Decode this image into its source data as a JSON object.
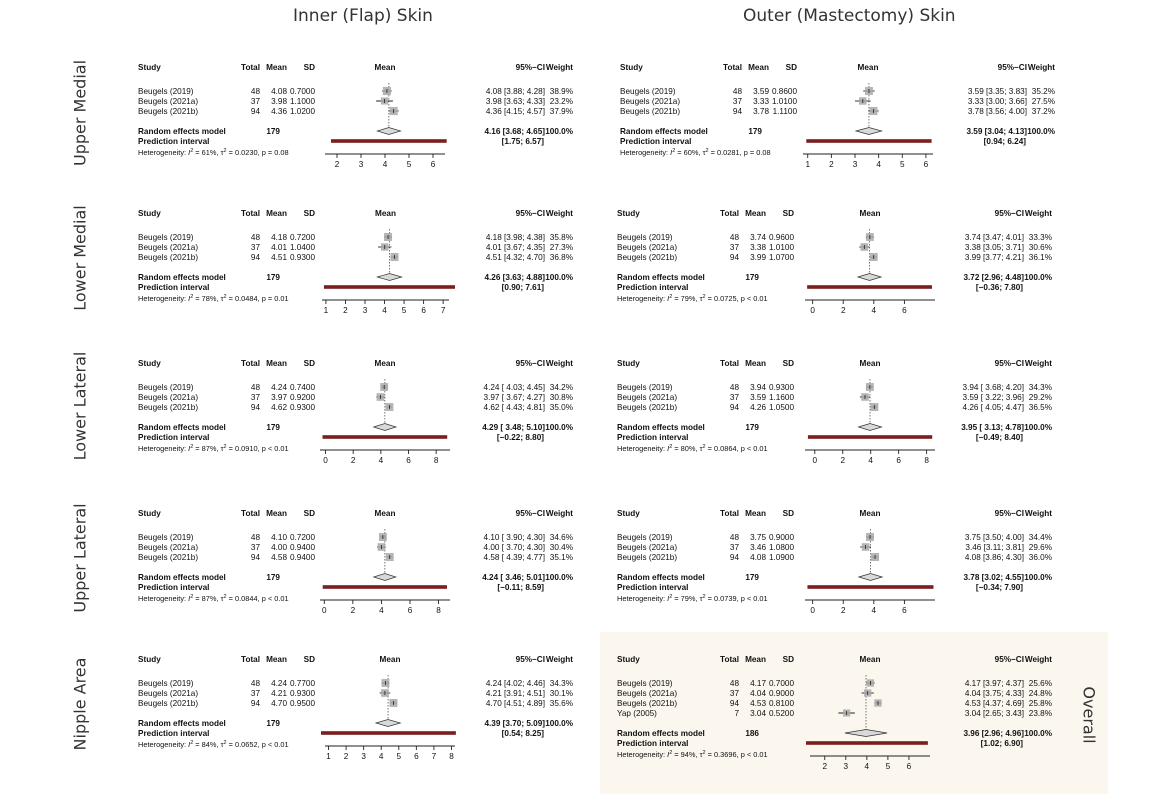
{
  "columns": [
    {
      "title": "Inner (Flap) Skin"
    },
    {
      "title": "Outer (Mastectomy) Skin"
    }
  ],
  "rows": [
    {
      "label": "Upper Medial"
    },
    {
      "label": "Lower Medial"
    },
    {
      "label": "Lower Lateral"
    },
    {
      "label": "Upper Lateral"
    },
    {
      "label": "Nipple Area"
    }
  ],
  "overall_label": "Overall",
  "headers": {
    "study": "Study",
    "total": "Total",
    "mean": "Mean",
    "sd": "SD",
    "plot": "Mean",
    "ci": "95%−CI",
    "weight": "Weight"
  },
  "labels": {
    "random": "Random effects model",
    "prediction": "Prediction interval"
  },
  "chart_data": [
    {
      "type": "forest",
      "panel": "inner-upper-medial",
      "xlim": [
        1.5,
        6.5
      ],
      "ticks": [
        "2",
        "3",
        "4",
        "5",
        "6"
      ],
      "studies": [
        {
          "name": "Beugels (2019)",
          "total": "48",
          "mean": "4.08",
          "sd": "0.7000",
          "est": 4.08,
          "lo": 3.88,
          "hi": 4.28,
          "ci": "4.08 [3.88; 4.28]",
          "weight": "38.9%",
          "w": 38.9
        },
        {
          "name": "Beugels (2021a)",
          "total": "37",
          "mean": "3.98",
          "sd": "1.1000",
          "est": 3.98,
          "lo": 3.63,
          "hi": 4.33,
          "ci": "3.98 [3.63; 4.33]",
          "weight": "23.2%",
          "w": 23.2
        },
        {
          "name": "Beugels (2021b)",
          "total": "94",
          "mean": "4.36",
          "sd": "1.0200",
          "est": 4.36,
          "lo": 4.15,
          "hi": 4.57,
          "ci": "4.36 [4.15; 4.57]",
          "weight": "37.9%",
          "w": 37.9
        }
      ],
      "random": {
        "total": "179",
        "est": 4.16,
        "lo": 3.68,
        "hi": 4.65,
        "ci": "4.16 [3.68; 4.65]",
        "weight": "100.0%"
      },
      "prediction": {
        "lo": 1.75,
        "hi": 6.57,
        "ci": "[1.75; 6.57]"
      },
      "heterogeneity": {
        "i2": "61%",
        "tau2": "0.0230",
        "p": "p = 0.08"
      }
    },
    {
      "type": "forest",
      "panel": "outer-upper-medial",
      "xlim": [
        0.8,
        6.3
      ],
      "ticks": [
        "1",
        "2",
        "3",
        "4",
        "5",
        "6"
      ],
      "studies": [
        {
          "name": "Beugels (2019)",
          "total": "48",
          "mean": "3.59",
          "sd": "0.8600",
          "est": 3.59,
          "lo": 3.35,
          "hi": 3.83,
          "ci": "3.59 [3.35; 3.83]",
          "weight": "35.2%",
          "w": 35.2
        },
        {
          "name": "Beugels (2021a)",
          "total": "37",
          "mean": "3.33",
          "sd": "1.0100",
          "est": 3.33,
          "lo": 3.0,
          "hi": 3.66,
          "ci": "3.33 [3.00; 3.66]",
          "weight": "27.5%",
          "w": 27.5
        },
        {
          "name": "Beugels (2021b)",
          "total": "94",
          "mean": "3.78",
          "sd": "1.1100",
          "est": 3.78,
          "lo": 3.56,
          "hi": 4.0,
          "ci": "3.78 [3.56; 4.00]",
          "weight": "37.2%",
          "w": 37.2
        }
      ],
      "random": {
        "total": "179",
        "est": 3.59,
        "lo": 3.04,
        "hi": 4.13,
        "ci": "3.59 [3.04; 4.13]",
        "weight": "100.0%"
      },
      "prediction": {
        "lo": 0.94,
        "hi": 6.24,
        "ci": "[0.94; 6.24]"
      },
      "heterogeneity": {
        "i2": "60%",
        "tau2": "0.0281",
        "p": "p = 0.08"
      }
    },
    {
      "type": "forest",
      "panel": "inner-lower-medial",
      "xlim": [
        0.8,
        7.3
      ],
      "ticks": [
        "1",
        "2",
        "3",
        "4",
        "5",
        "6",
        "7"
      ],
      "studies": [
        {
          "name": "Beugels (2019)",
          "total": "48",
          "mean": "4.18",
          "sd": "0.7200",
          "est": 4.18,
          "lo": 3.98,
          "hi": 4.38,
          "ci": "4.18 [3.98; 4.38]",
          "weight": "35.8%",
          "w": 35.8
        },
        {
          "name": "Beugels (2021a)",
          "total": "37",
          "mean": "4.01",
          "sd": "1.0400",
          "est": 4.01,
          "lo": 3.67,
          "hi": 4.35,
          "ci": "4.01 [3.67; 4.35]",
          "weight": "27.3%",
          "w": 27.3
        },
        {
          "name": "Beugels (2021b)",
          "total": "94",
          "mean": "4.51",
          "sd": "0.9300",
          "est": 4.51,
          "lo": 4.32,
          "hi": 4.7,
          "ci": "4.51 [4.32; 4.70]",
          "weight": "36.8%",
          "w": 36.8
        }
      ],
      "random": {
        "total": "179",
        "est": 4.26,
        "lo": 3.63,
        "hi": 4.88,
        "ci": "4.26 [3.63; 4.88]",
        "weight": "100.0%"
      },
      "prediction": {
        "lo": 0.9,
        "hi": 7.61,
        "ci": "[0.90; 7.61]"
      },
      "heterogeneity": {
        "i2": "78%",
        "tau2": "0.0484",
        "p": "p = 0.01"
      }
    },
    {
      "type": "forest",
      "panel": "outer-lower-medial",
      "xlim": [
        -0.5,
        8.0
      ],
      "ticks": [
        "0",
        "2",
        "4",
        "6"
      ],
      "studies": [
        {
          "name": "Beugels (2019)",
          "total": "48",
          "mean": "3.74",
          "sd": "0.9600",
          "est": 3.74,
          "lo": 3.47,
          "hi": 4.01,
          "ci": "3.74 [3.47; 4.01]",
          "weight": "33.3%",
          "w": 33.3
        },
        {
          "name": "Beugels (2021a)",
          "total": "37",
          "mean": "3.38",
          "sd": "1.0100",
          "est": 3.38,
          "lo": 3.05,
          "hi": 3.71,
          "ci": "3.38 [3.05; 3.71]",
          "weight": "30.6%",
          "w": 30.6
        },
        {
          "name": "Beugels (2021b)",
          "total": "94",
          "mean": "3.99",
          "sd": "1.0700",
          "est": 3.99,
          "lo": 3.77,
          "hi": 4.21,
          "ci": "3.99 [3.77; 4.21]",
          "weight": "36.1%",
          "w": 36.1
        }
      ],
      "random": {
        "total": "179",
        "est": 3.72,
        "lo": 2.96,
        "hi": 4.48,
        "ci": "3.72 [2.96; 4.48]",
        "weight": "100.0%"
      },
      "prediction": {
        "lo": -0.36,
        "hi": 7.8,
        "ci": "[−0.36; 7.80]"
      },
      "heterogeneity": {
        "i2": "79%",
        "tau2": "0.0725",
        "p": "p < 0.01"
      }
    },
    {
      "type": "forest",
      "panel": "inner-lower-lateral",
      "xlim": [
        -0.4,
        9.0
      ],
      "ticks": [
        "0",
        "2",
        "4",
        "6",
        "8"
      ],
      "studies": [
        {
          "name": "Beugels (2019)",
          "total": "48",
          "mean": "4.24",
          "sd": "0.7400",
          "est": 4.24,
          "lo": 4.03,
          "hi": 4.45,
          "ci": "4.24 [ 4.03; 4.45]",
          "weight": "34.2%",
          "w": 34.2
        },
        {
          "name": "Beugels (2021a)",
          "total": "37",
          "mean": "3.97",
          "sd": "0.9200",
          "est": 3.97,
          "lo": 3.67,
          "hi": 4.27,
          "ci": "3.97 [ 3.67; 4.27]",
          "weight": "30.8%",
          "w": 30.8
        },
        {
          "name": "Beugels (2021b)",
          "total": "94",
          "mean": "4.62",
          "sd": "0.9300",
          "est": 4.62,
          "lo": 4.43,
          "hi": 4.81,
          "ci": "4.62 [ 4.43; 4.81]",
          "weight": "35.0%",
          "w": 35.0
        }
      ],
      "random": {
        "total": "179",
        "est": 4.29,
        "lo": 3.48,
        "hi": 5.1,
        "ci": "4.29 [ 3.48; 5.10]",
        "weight": "100.0%"
      },
      "prediction": {
        "lo": -0.22,
        "hi": 8.8,
        "ci": "[−0.22; 8.80]"
      },
      "heterogeneity": {
        "i2": "87%",
        "tau2": "0.0910",
        "p": "p < 0.01"
      }
    },
    {
      "type": "forest",
      "panel": "outer-lower-lateral",
      "xlim": [
        -0.7,
        8.6
      ],
      "ticks": [
        "0",
        "2",
        "4",
        "6",
        "8"
      ],
      "studies": [
        {
          "name": "Beugels (2019)",
          "total": "48",
          "mean": "3.94",
          "sd": "0.9300",
          "est": 3.94,
          "lo": 3.68,
          "hi": 4.2,
          "ci": "3.94 [ 3.68; 4.20]",
          "weight": "34.3%",
          "w": 34.3
        },
        {
          "name": "Beugels (2021a)",
          "total": "37",
          "mean": "3.59",
          "sd": "1.1600",
          "est": 3.59,
          "lo": 3.22,
          "hi": 3.96,
          "ci": "3.59 [ 3.22; 3.96]",
          "weight": "29.2%",
          "w": 29.2
        },
        {
          "name": "Beugels (2021b)",
          "total": "94",
          "mean": "4.26",
          "sd": "1.0500",
          "est": 4.26,
          "lo": 4.05,
          "hi": 4.47,
          "ci": "4.26 [ 4.05; 4.47]",
          "weight": "36.5%",
          "w": 36.5
        }
      ],
      "random": {
        "total": "179",
        "est": 3.95,
        "lo": 3.13,
        "hi": 4.78,
        "ci": "3.95 [ 3.13; 4.78]",
        "weight": "100.0%"
      },
      "prediction": {
        "lo": -0.49,
        "hi": 8.4,
        "ci": "[−0.49; 8.40]"
      },
      "heterogeneity": {
        "i2": "80%",
        "tau2": "0.0864",
        "p": "p < 0.01"
      }
    },
    {
      "type": "forest",
      "panel": "inner-upper-lateral",
      "xlim": [
        -0.3,
        8.8
      ],
      "ticks": [
        "0",
        "2",
        "4",
        "6",
        "8"
      ],
      "studies": [
        {
          "name": "Beugels (2019)",
          "total": "48",
          "mean": "4.10",
          "sd": "0.7200",
          "est": 4.1,
          "lo": 3.9,
          "hi": 4.3,
          "ci": "4.10 [ 3.90; 4.30]",
          "weight": "34.6%",
          "w": 34.6
        },
        {
          "name": "Beugels (2021a)",
          "total": "37",
          "mean": "4.00",
          "sd": "0.9400",
          "est": 4.0,
          "lo": 3.7,
          "hi": 4.3,
          "ci": "4.00 [ 3.70; 4.30]",
          "weight": "30.4%",
          "w": 30.4
        },
        {
          "name": "Beugels (2021b)",
          "total": "94",
          "mean": "4.58",
          "sd": "0.9400",
          "est": 4.58,
          "lo": 4.39,
          "hi": 4.77,
          "ci": "4.58 [ 4.39; 4.77]",
          "weight": "35.1%",
          "w": 35.1
        }
      ],
      "random": {
        "total": "179",
        "est": 4.24,
        "lo": 3.46,
        "hi": 5.01,
        "ci": "4.24 [ 3.46; 5.01]",
        "weight": "100.0%"
      },
      "prediction": {
        "lo": -0.11,
        "hi": 8.59,
        "ci": "[−0.11; 8.59]"
      },
      "heterogeneity": {
        "i2": "87%",
        "tau2": "0.0844",
        "p": "p < 0.01"
      }
    },
    {
      "type": "forest",
      "panel": "outer-upper-lateral",
      "xlim": [
        -0.5,
        8.0
      ],
      "ticks": [
        "0",
        "2",
        "4",
        "6"
      ],
      "studies": [
        {
          "name": "Beugels (2019)",
          "total": "48",
          "mean": "3.75",
          "sd": "0.9000",
          "est": 3.75,
          "lo": 3.5,
          "hi": 4.0,
          "ci": "3.75 [3.50; 4.00]",
          "weight": "34.4%",
          "w": 34.4
        },
        {
          "name": "Beugels (2021a)",
          "total": "37",
          "mean": "3.46",
          "sd": "1.0800",
          "est": 3.46,
          "lo": 3.11,
          "hi": 3.81,
          "ci": "3.46 [3.11; 3.81]",
          "weight": "29.6%",
          "w": 29.6
        },
        {
          "name": "Beugels (2021b)",
          "total": "94",
          "mean": "4.08",
          "sd": "1.0900",
          "est": 4.08,
          "lo": 3.86,
          "hi": 4.3,
          "ci": "4.08 [3.86; 4.30]",
          "weight": "36.0%",
          "w": 36.0
        }
      ],
      "random": {
        "total": "179",
        "est": 3.78,
        "lo": 3.02,
        "hi": 4.55,
        "ci": "3.78 [3.02; 4.55]",
        "weight": "100.0%"
      },
      "prediction": {
        "lo": -0.34,
        "hi": 7.9,
        "ci": "[−0.34; 7.90]"
      },
      "heterogeneity": {
        "i2": "79%",
        "tau2": "0.0739",
        "p": "p < 0.01"
      }
    },
    {
      "type": "forest",
      "panel": "inner-nipple-area",
      "xlim": [
        0.8,
        8.2
      ],
      "ticks": [
        "1",
        "2",
        "3",
        "4",
        "5",
        "6",
        "7",
        "8"
      ],
      "studies": [
        {
          "name": "Beugels (2019)",
          "total": "48",
          "mean": "4.24",
          "sd": "0.7700",
          "est": 4.24,
          "lo": 4.02,
          "hi": 4.46,
          "ci": "4.24 [4.02; 4.46]",
          "weight": "34.3%",
          "w": 34.3
        },
        {
          "name": "Beugels (2021a)",
          "total": "37",
          "mean": "4.21",
          "sd": "0.9300",
          "est": 4.21,
          "lo": 3.91,
          "hi": 4.51,
          "ci": "4.21 [3.91; 4.51]",
          "weight": "30.1%",
          "w": 30.1
        },
        {
          "name": "Beugels (2021b)",
          "total": "94",
          "mean": "4.70",
          "sd": "0.9500",
          "est": 4.7,
          "lo": 4.51,
          "hi": 4.89,
          "ci": "4.70 [4.51; 4.89]",
          "weight": "35.6%",
          "w": 35.6
        }
      ],
      "random": {
        "total": "179",
        "est": 4.39,
        "lo": 3.7,
        "hi": 5.09,
        "ci": "4.39 [3.70; 5.09]",
        "weight": "100.0%"
      },
      "prediction": {
        "lo": 0.54,
        "hi": 8.25,
        "ci": "[0.54; 8.25]"
      },
      "heterogeneity": {
        "i2": "84%",
        "tau2": "0.0652",
        "p": "p < 0.01"
      }
    },
    {
      "type": "forest",
      "panel": "overall",
      "xlim": [
        1.3,
        7.0
      ],
      "ticks": [
        "2",
        "3",
        "4",
        "5",
        "6"
      ],
      "studies": [
        {
          "name": "Beugels (2019)",
          "total": "48",
          "mean": "4.17",
          "sd": "0.7000",
          "est": 4.17,
          "lo": 3.97,
          "hi": 4.37,
          "ci": "4.17 [3.97; 4.37]",
          "weight": "25.6%",
          "w": 25.6
        },
        {
          "name": "Beugels (2021a)",
          "total": "37",
          "mean": "4.04",
          "sd": "0.9000",
          "est": 4.04,
          "lo": 3.75,
          "hi": 4.33,
          "ci": "4.04 [3.75; 4.33]",
          "weight": "24.8%",
          "w": 24.8
        },
        {
          "name": "Beugels (2021b)",
          "total": "94",
          "mean": "4.53",
          "sd": "0.8100",
          "est": 4.53,
          "lo": 4.37,
          "hi": 4.69,
          "ci": "4.53 [4.37; 4.69]",
          "weight": "25.8%",
          "w": 25.8
        },
        {
          "name": "Yap (2005)",
          "total": "7",
          "mean": "3.04",
          "sd": "0.5200",
          "est": 3.04,
          "lo": 2.65,
          "hi": 3.43,
          "ci": "3.04 [2.65; 3.43]",
          "weight": "23.8%",
          "w": 23.8
        }
      ],
      "random": {
        "total": "186",
        "est": 3.96,
        "lo": 2.96,
        "hi": 4.96,
        "ci": "3.96 [2.96; 4.96]",
        "weight": "100.0%"
      },
      "prediction": {
        "lo": 1.02,
        "hi": 6.9,
        "ci": "[1.02; 6.90]"
      },
      "heterogeneity": {
        "i2": "94%",
        "tau2": "0.3696",
        "p": "p < 0.01"
      }
    }
  ],
  "colors": {
    "diamond_fill": "#d9d9d9",
    "prediction_bar": "#7a1e1e",
    "square": "#a8a8a8",
    "overall_bg": "#fbf6ee"
  }
}
